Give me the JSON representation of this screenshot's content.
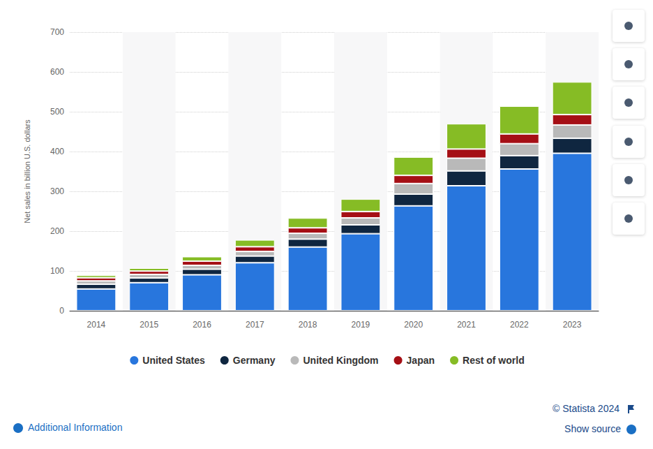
{
  "chart_data": {
    "type": "bar",
    "stacked": true,
    "grid": true,
    "legend": "bottom",
    "y_label": "Net sales in billion U.S. dollars",
    "categories": [
      "2014",
      "2015",
      "2016",
      "2017",
      "2018",
      "2019",
      "2020",
      "2021",
      "2022",
      "2023"
    ],
    "series": [
      {
        "name": "United States",
        "color": "#2876dd",
        "values": [
          54.7,
          70.5,
          90.3,
          120.5,
          160.1,
          193.6,
          263.5,
          314.0,
          356.1,
          395.6
        ]
      },
      {
        "name": "Germany",
        "color": "#0f2640",
        "values": [
          11.9,
          11.8,
          14.1,
          17.0,
          19.9,
          22.2,
          29.6,
          37.3,
          33.6,
          37.6
        ]
      },
      {
        "name": "United Kingdom",
        "color": "#b9b9b9",
        "values": [
          8.3,
          9.0,
          9.5,
          11.4,
          14.5,
          17.5,
          26.5,
          31.9,
          30.1,
          33.6
        ]
      },
      {
        "name": "Japan",
        "color": "#a50f15",
        "values": [
          7.9,
          8.3,
          10.8,
          11.9,
          13.8,
          16.0,
          20.5,
          23.1,
          24.4,
          26.0
        ]
      },
      {
        "name": "Rest of world",
        "color": "#86bc25",
        "values": [
          6.2,
          7.4,
          11.2,
          17.1,
          24.6,
          31.2,
          46.0,
          63.5,
          69.8,
          82.0
        ]
      }
    ],
    "ylim": [
      0,
      700
    ],
    "yticks": [
      0,
      100,
      200,
      300,
      400,
      500,
      600,
      700
    ],
    "annotations": [
      "© Statista 2024",
      "Additional Information",
      "Show source"
    ]
  }
}
